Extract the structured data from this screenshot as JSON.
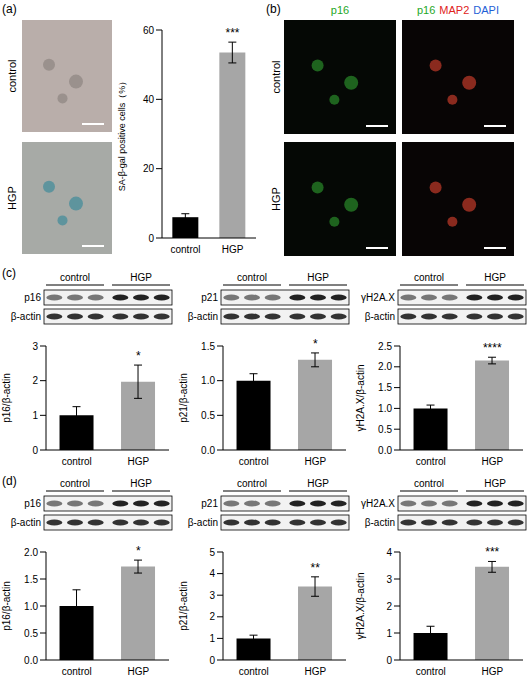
{
  "labels": [
    "(a)",
    "(b)",
    "(c)",
    "(d)"
  ],
  "micrographs_a": {
    "rows": [
      "control",
      "HGP"
    ]
  },
  "micrographs_b": {
    "columns": [
      [
        {
          "text": "p16",
          "color": "#1fa81f"
        }
      ],
      [
        {
          "text": "p16",
          "color": "#1fa81f"
        },
        {
          "text": "MAP2",
          "color": "#e0231c"
        },
        {
          "text": "DAPI",
          "color": "#1f5fd6"
        }
      ]
    ],
    "rows": [
      "control",
      "HGP"
    ]
  },
  "blots_c": [
    {
      "groups": [
        "control",
        "HGP"
      ],
      "bands": [
        "p16",
        "β-actin"
      ]
    },
    {
      "groups": [
        "control",
        "HGP"
      ],
      "bands": [
        "p21",
        "β-actin"
      ]
    },
    {
      "groups": [
        "control",
        "HGP"
      ],
      "bands": [
        "γH2A.X",
        "β-actin"
      ]
    }
  ],
  "blots_d": [
    {
      "groups": [
        "control",
        "HGP"
      ],
      "bands": [
        "p16",
        "β-actin"
      ]
    },
    {
      "groups": [
        "control",
        "HGP"
      ],
      "bands": [
        "p21",
        "β-actin"
      ]
    },
    {
      "groups": [
        "control",
        "HGP"
      ],
      "bands": [
        "γH2A.X",
        "β-actin"
      ]
    }
  ],
  "chart_data": [
    {
      "type": "bar",
      "ylabel": "SA-β-gal positive cells（%）",
      "categories": [
        "control",
        "HGP"
      ],
      "values": [
        6,
        53.5
      ],
      "errors": [
        1,
        3
      ],
      "colors": [
        "#000000",
        "#a6a6a6"
      ],
      "ylim": [
        0,
        60
      ],
      "yticks": [
        0,
        20,
        40,
        60
      ],
      "annotations": [
        {
          "category": "HGP",
          "text": "***"
        }
      ]
    },
    {
      "type": "bar",
      "ylabel": "p16/β-actin",
      "categories": [
        "control",
        "HGP"
      ],
      "values": [
        1,
        1.97
      ],
      "errors": [
        0.25,
        0.48
      ],
      "colors": [
        "#000000",
        "#a6a6a6"
      ],
      "ylim": [
        0,
        3
      ],
      "yticks": [
        0,
        1,
        2,
        3
      ],
      "annotations": [
        {
          "category": "HGP",
          "text": "*"
        }
      ]
    },
    {
      "type": "bar",
      "ylabel": "p21/β-actin",
      "categories": [
        "control",
        "HGP"
      ],
      "values": [
        1,
        1.3
      ],
      "errors": [
        0.1,
        0.1
      ],
      "colors": [
        "#000000",
        "#a6a6a6"
      ],
      "ylim": [
        0,
        1.5
      ],
      "yticks": [
        {
          "value": 0,
          "label": "0.0"
        },
        0.5,
        {
          "value": 1,
          "label": "1.0"
        },
        1.5
      ],
      "annotations": [
        {
          "category": "HGP",
          "text": "*"
        }
      ]
    },
    {
      "type": "bar",
      "ylabel": "γH2A.X/β-actin",
      "categories": [
        "control",
        "HGP"
      ],
      "values": [
        1,
        2.15
      ],
      "errors": [
        0.08,
        0.08
      ],
      "colors": [
        "#000000",
        "#a6a6a6"
      ],
      "ylim": [
        0,
        2.5
      ],
      "yticks": [
        {
          "value": 0,
          "label": "0.0"
        },
        0.5,
        {
          "value": 1,
          "label": "1.0"
        },
        1.5,
        {
          "value": 2,
          "label": "2.0"
        },
        2.5
      ],
      "annotations": [
        {
          "category": "HGP",
          "text": "****"
        }
      ]
    },
    {
      "type": "bar",
      "ylabel": "p16/β-actin",
      "categories": [
        "control",
        "HGP"
      ],
      "values": [
        1,
        1.73
      ],
      "errors": [
        0.3,
        0.12
      ],
      "colors": [
        "#000000",
        "#a6a6a6"
      ],
      "ylim": [
        0,
        2
      ],
      "yticks": [
        {
          "value": 0,
          "label": "0.0"
        },
        0.5,
        {
          "value": 1,
          "label": "1.0"
        },
        1.5,
        {
          "value": 2,
          "label": "2.0"
        }
      ],
      "annotations": [
        {
          "category": "HGP",
          "text": "*"
        }
      ]
    },
    {
      "type": "bar",
      "ylabel": "p21/β-actin",
      "categories": [
        "control",
        "HGP"
      ],
      "values": [
        1,
        3.4
      ],
      "errors": [
        0.15,
        0.45
      ],
      "colors": [
        "#000000",
        "#a6a6a6"
      ],
      "ylim": [
        0,
        5
      ],
      "yticks": [
        0,
        1,
        2,
        3,
        4,
        5
      ],
      "annotations": [
        {
          "category": "HGP",
          "text": "**"
        }
      ]
    },
    {
      "type": "bar",
      "ylabel": "γH2A.X/β-actin",
      "categories": [
        "control",
        "HGP"
      ],
      "values": [
        1,
        3.45
      ],
      "errors": [
        0.25,
        0.2
      ],
      "colors": [
        "#000000",
        "#a6a6a6"
      ],
      "ylim": [
        0,
        4
      ],
      "yticks": [
        0,
        1,
        2,
        3,
        4
      ],
      "annotations": [
        {
          "category": "HGP",
          "text": "***"
        }
      ]
    }
  ]
}
